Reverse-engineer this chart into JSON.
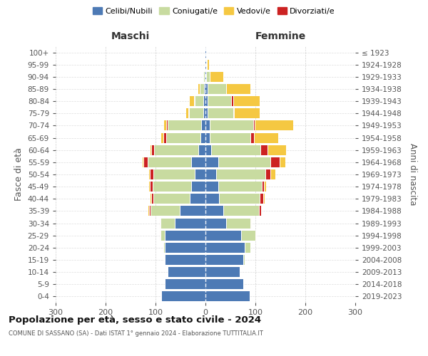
{
  "age_groups": [
    "0-4",
    "5-9",
    "10-14",
    "15-19",
    "20-24",
    "25-29",
    "30-34",
    "35-39",
    "40-44",
    "45-49",
    "50-54",
    "55-59",
    "60-64",
    "65-69",
    "70-74",
    "75-79",
    "80-84",
    "85-89",
    "90-94",
    "95-99",
    "100+"
  ],
  "birth_years": [
    "2019-2023",
    "2014-2018",
    "2009-2013",
    "2004-2008",
    "1999-2003",
    "1994-1998",
    "1989-1993",
    "1984-1988",
    "1979-1983",
    "1974-1978",
    "1969-1973",
    "1964-1968",
    "1959-1963",
    "1954-1958",
    "1949-1953",
    "1944-1948",
    "1939-1943",
    "1934-1938",
    "1929-1933",
    "1924-1928",
    "≤ 1923"
  ],
  "males_celibi": [
    88,
    82,
    76,
    82,
    82,
    82,
    62,
    52,
    32,
    28,
    22,
    28,
    15,
    10,
    8,
    5,
    4,
    3,
    2,
    1,
    1
  ],
  "males_coniugati": [
    0,
    0,
    0,
    1,
    2,
    8,
    28,
    58,
    72,
    78,
    82,
    88,
    88,
    68,
    68,
    28,
    18,
    8,
    3,
    0,
    0
  ],
  "males_vedovi": [
    0,
    0,
    0,
    0,
    0,
    0,
    0,
    1,
    1,
    1,
    2,
    2,
    2,
    3,
    5,
    4,
    8,
    4,
    0,
    0,
    0
  ],
  "males_divorziati": [
    0,
    0,
    0,
    0,
    0,
    1,
    2,
    3,
    5,
    6,
    7,
    8,
    5,
    7,
    2,
    2,
    1,
    0,
    0,
    0,
    0
  ],
  "females_nubili": [
    88,
    75,
    68,
    75,
    78,
    72,
    42,
    35,
    27,
    25,
    22,
    25,
    12,
    8,
    8,
    4,
    4,
    4,
    2,
    1,
    1
  ],
  "females_coniugate": [
    0,
    0,
    0,
    3,
    12,
    28,
    48,
    72,
    82,
    88,
    98,
    105,
    98,
    82,
    88,
    52,
    48,
    38,
    6,
    2,
    0
  ],
  "females_vedove": [
    0,
    0,
    0,
    0,
    0,
    0,
    1,
    2,
    4,
    4,
    10,
    12,
    38,
    48,
    78,
    52,
    52,
    48,
    28,
    4,
    1
  ],
  "females_divorziate": [
    0,
    0,
    0,
    0,
    0,
    1,
    2,
    4,
    6,
    4,
    10,
    18,
    14,
    7,
    2,
    1,
    4,
    0,
    0,
    0,
    0
  ],
  "color_celibi": "#4d7ab5",
  "color_coniugati": "#c8dba0",
  "color_vedovi": "#f5c842",
  "color_divorziati": "#cc2222",
  "color_bg": "#ffffff",
  "color_grid": "#bbbbbb",
  "xlim": 300,
  "title": "Popolazione per età, sesso e stato civile - 2024",
  "subtitle": "COMUNE DI SASSANO (SA) - Dati ISTAT 1° gennaio 2024 - Elaborazione TUTTITALIA.IT",
  "legend_labels": [
    "Celibi/Nubili",
    "Coniugati/e",
    "Vedovi/e",
    "Divorziati/e"
  ],
  "label_maschi": "Maschi",
  "label_femmine": "Femmine",
  "ylabel_left": "Fasce di età",
  "ylabel_right": "Anni di nascita"
}
